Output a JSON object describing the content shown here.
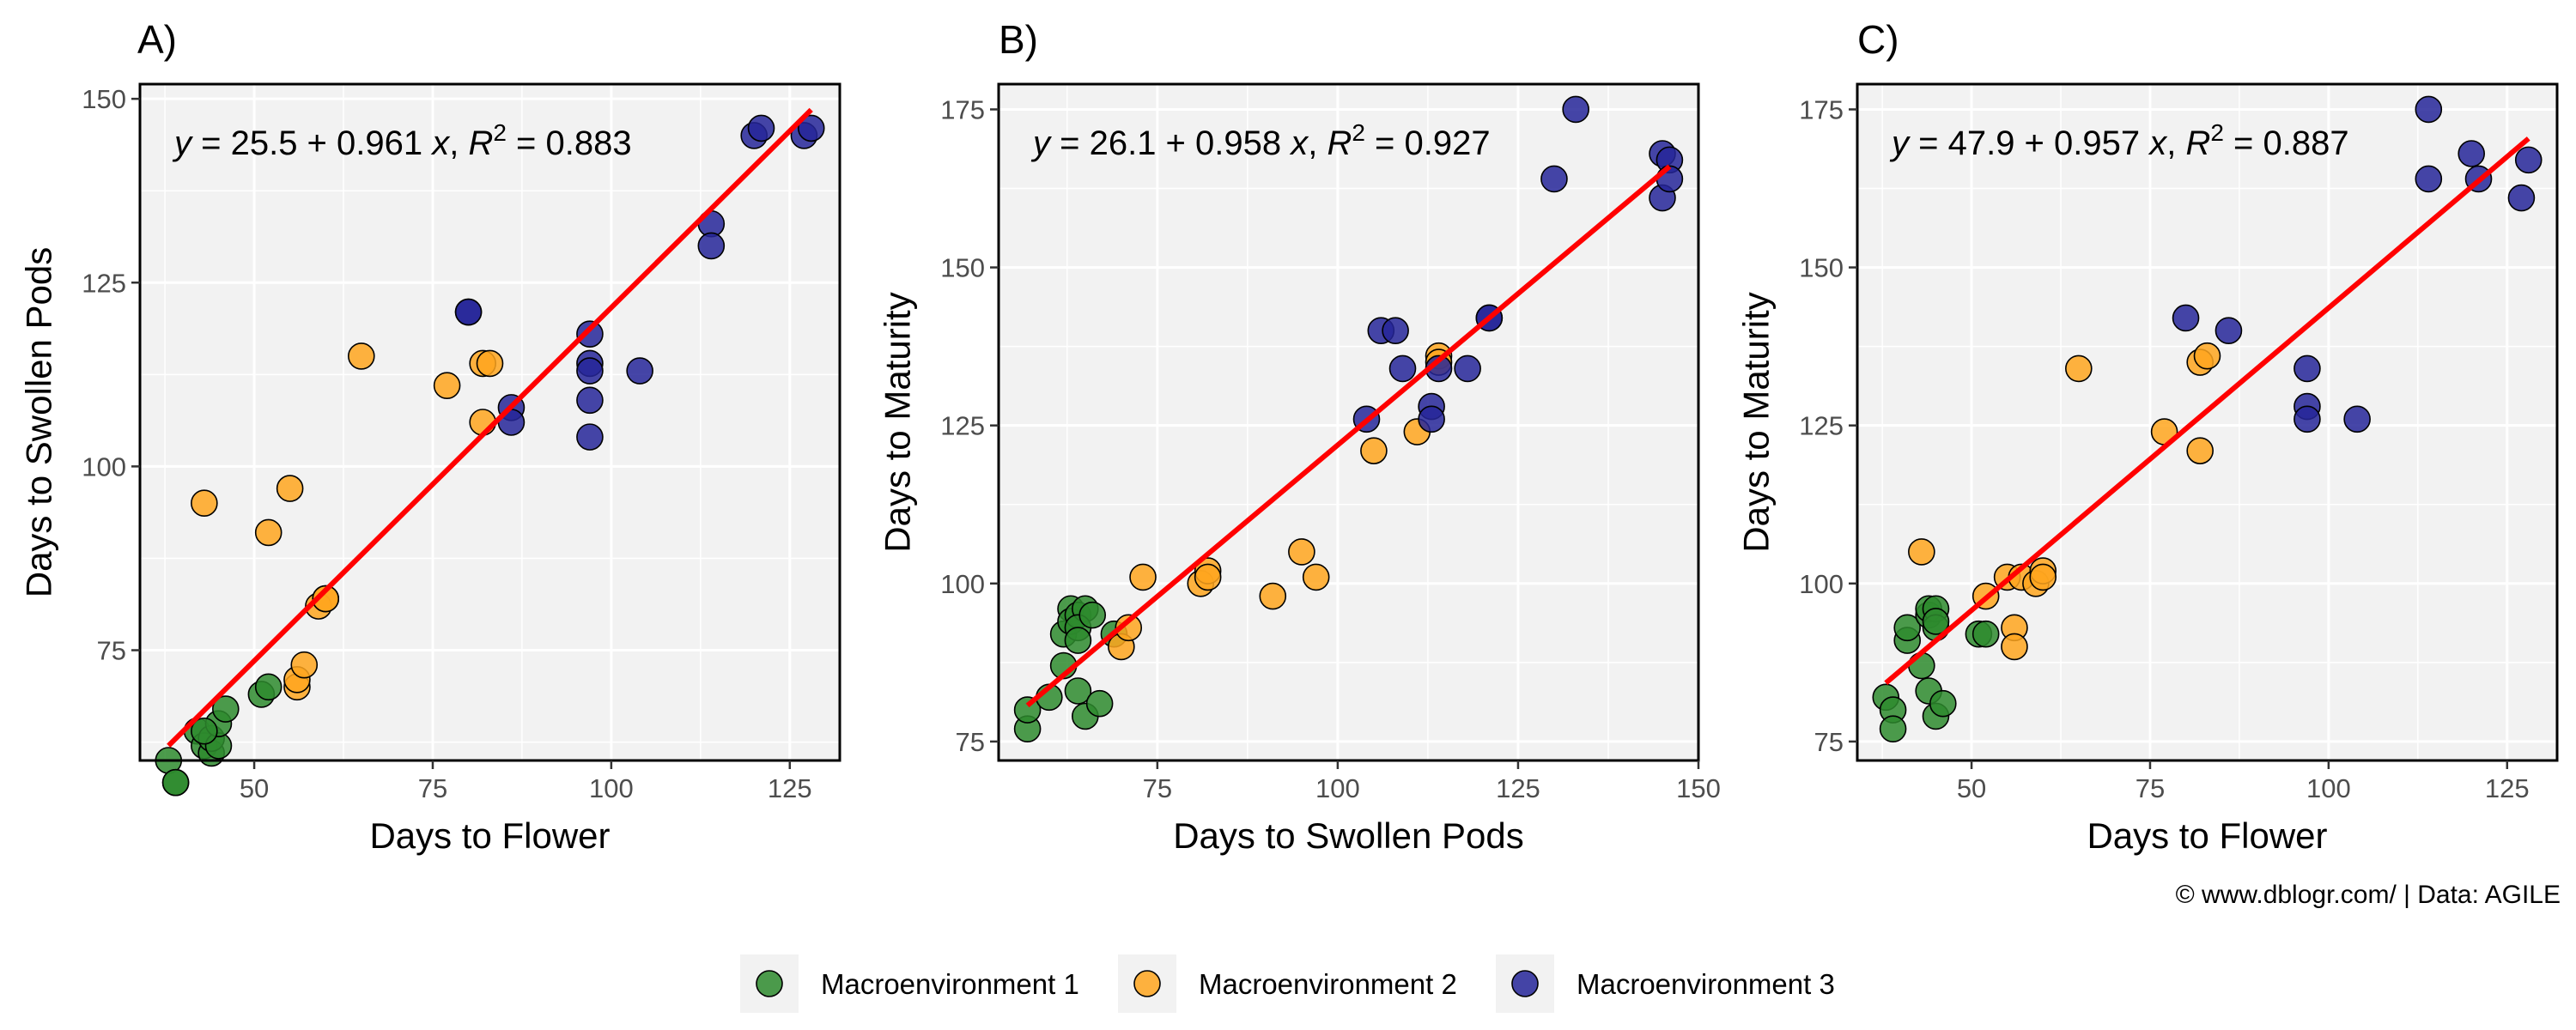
{
  "colors": {
    "panel_bg": "#f2f2f2",
    "grid": "#ffffff",
    "border": "#000000",
    "fit_line": "#ff0000",
    "env1": "#2e8b2e",
    "env2": "#ffa61f",
    "env3": "#262699",
    "env3_dark": "#0b0b8a",
    "env2_dark": "#ff9900"
  },
  "legend": [
    {
      "label": "Macroenvironment 1",
      "color_key": "env1"
    },
    {
      "label": "Macroenvironment 2",
      "color_key": "env2"
    },
    {
      "label": "Macroenvironment 3",
      "color_key": "env3"
    }
  ],
  "caption": "© www.dblogr.com/  |  Data: AGILE",
  "chart_data": [
    {
      "type": "scatter",
      "tag": "A)",
      "xlabel": "Days to Flower",
      "ylabel": "Days to Swollen Pods",
      "xlim": [
        34,
        132
      ],
      "ylim": [
        60,
        152
      ],
      "xticks": [
        50,
        75,
        100,
        125
      ],
      "yticks": [
        75,
        100,
        125,
        150
      ],
      "equation": {
        "y": "y",
        "eq": " = 25.5 + 0.961 ",
        "x": "x",
        "sep": ",  ",
        "R": "R",
        "sup": "2",
        "r2": " = 0.883"
      },
      "fit": {
        "intercept": 25.5,
        "slope": 0.961,
        "x_range": [
          38,
          128
        ]
      },
      "series": [
        {
          "group": "env1",
          "points": [
            [
              38,
              60
            ],
            [
              39,
              57
            ],
            [
              39,
              57
            ],
            [
              42,
              64
            ],
            [
              43,
              62
            ],
            [
              44,
              61
            ],
            [
              44,
              63
            ],
            [
              45,
              62
            ],
            [
              45,
              65
            ],
            [
              46,
              67
            ],
            [
              51,
              69
            ],
            [
              52,
              70
            ],
            [
              43,
              64
            ]
          ]
        },
        {
          "group": "env2",
          "points": [
            [
              43,
              95
            ],
            [
              52,
              91
            ],
            [
              55,
              97
            ],
            [
              56,
              70
            ],
            [
              56,
              71
            ],
            [
              57,
              73
            ],
            [
              59,
              81
            ],
            [
              60,
              82
            ],
            [
              65,
              115
            ],
            [
              77,
              111
            ],
            [
              82,
              114
            ],
            [
              83,
              114
            ],
            [
              82,
              106
            ],
            [
              60,
              82
            ]
          ]
        },
        {
          "group": "env3",
          "points": [
            [
              80,
              121
            ],
            [
              80,
              121
            ],
            [
              86,
              108
            ],
            [
              86,
              106
            ],
            [
              97,
              118
            ],
            [
              97,
              114
            ],
            [
              97,
              113
            ],
            [
              97,
              109
            ],
            [
              97,
              104
            ],
            [
              104,
              113
            ],
            [
              114,
              133
            ],
            [
              114,
              130
            ],
            [
              120,
              145
            ],
            [
              121,
              146
            ],
            [
              127,
              145
            ],
            [
              128,
              146
            ]
          ]
        }
      ]
    },
    {
      "type": "scatter",
      "tag": "B)",
      "xlabel": "Days to Swollen Pods",
      "ylabel": "Days to Maturity",
      "xlim": [
        53,
        150
      ],
      "ylim": [
        72,
        179
      ],
      "xticks": [
        75,
        100,
        125,
        150
      ],
      "yticks": [
        75,
        100,
        125,
        150,
        175
      ],
      "equation": {
        "y": "y",
        "eq": " = 26.1 + 0.958 ",
        "x": "x",
        "sep": ",  ",
        "R": "R",
        "sup": "2",
        "r2": " = 0.927"
      },
      "fit": {
        "intercept": 26.1,
        "slope": 0.958,
        "x_range": [
          57,
          146
        ]
      },
      "series": [
        {
          "group": "env1",
          "points": [
            [
              57,
              77
            ],
            [
              57,
              80
            ],
            [
              60,
              82
            ],
            [
              62,
              87
            ],
            [
              62,
              92
            ],
            [
              63,
              96
            ],
            [
              63,
              94
            ],
            [
              64,
              95
            ],
            [
              65,
              96
            ],
            [
              64,
              93
            ],
            [
              64,
              91
            ],
            [
              65,
              79
            ],
            [
              64,
              83
            ],
            [
              66,
              95
            ],
            [
              67,
              81
            ],
            [
              69,
              92
            ]
          ]
        },
        {
          "group": "env2",
          "points": [
            [
              70,
              90
            ],
            [
              71,
              93
            ],
            [
              73,
              101
            ],
            [
              81,
              100
            ],
            [
              82,
              102
            ],
            [
              82,
              101
            ],
            [
              91,
              98
            ],
            [
              95,
              105
            ],
            [
              97,
              101
            ],
            [
              105,
              121
            ],
            [
              111,
              124
            ],
            [
              114,
              136
            ],
            [
              114,
              135
            ]
          ]
        },
        {
          "group": "env3",
          "points": [
            [
              104,
              126
            ],
            [
              106,
              140
            ],
            [
              108,
              140
            ],
            [
              109,
              134
            ],
            [
              113,
              128
            ],
            [
              113,
              126
            ],
            [
              114,
              134
            ],
            [
              118,
              134
            ],
            [
              121,
              142
            ],
            [
              121,
              142
            ],
            [
              130,
              164
            ],
            [
              133,
              175
            ],
            [
              145,
              168
            ],
            [
              145,
              161
            ],
            [
              146,
              167
            ],
            [
              146,
              164
            ]
          ]
        }
      ]
    },
    {
      "type": "scatter",
      "tag": "C)",
      "xlabel": "Days to Flower",
      "ylabel": "Days to Maturity",
      "xlim": [
        34,
        132
      ],
      "ylim": [
        72,
        179
      ],
      "xticks": [
        50,
        75,
        100,
        125
      ],
      "yticks": [
        75,
        100,
        125,
        150,
        175
      ],
      "equation": {
        "y": "y",
        "eq": " = 47.9 + 0.957 ",
        "x": "x",
        "sep": ",  ",
        "R": "R",
        "sup": "2",
        "r2": " = 0.887"
      },
      "fit": {
        "intercept": 47.9,
        "slope": 0.957,
        "x_range": [
          38,
          128
        ]
      },
      "series": [
        {
          "group": "env1",
          "points": [
            [
              38,
              82
            ],
            [
              39,
              80
            ],
            [
              39,
              77
            ],
            [
              41,
              91
            ],
            [
              41,
              93
            ],
            [
              43,
              87
            ],
            [
              44,
              83
            ],
            [
              44,
              95
            ],
            [
              44,
              96
            ],
            [
              45,
              96
            ],
            [
              45,
              93
            ],
            [
              45,
              79
            ],
            [
              46,
              81
            ],
            [
              51,
              92
            ],
            [
              52,
              92
            ],
            [
              45,
              94
            ]
          ]
        },
        {
          "group": "env2",
          "points": [
            [
              43,
              105
            ],
            [
              52,
              98
            ],
            [
              55,
              101
            ],
            [
              56,
              93
            ],
            [
              56,
              90
            ],
            [
              57,
              101
            ],
            [
              59,
              100
            ],
            [
              60,
              102
            ],
            [
              60,
              101
            ],
            [
              65,
              134
            ],
            [
              77,
              124
            ],
            [
              82,
              121
            ],
            [
              82,
              135
            ],
            [
              83,
              136
            ]
          ]
        },
        {
          "group": "env3",
          "points": [
            [
              80,
              142
            ],
            [
              86,
              140
            ],
            [
              97,
              134
            ],
            [
              97,
              128
            ],
            [
              97,
              126
            ],
            [
              104,
              126
            ],
            [
              114,
              175
            ],
            [
              114,
              164
            ],
            [
              120,
              168
            ],
            [
              121,
              164
            ],
            [
              127,
              161
            ],
            [
              128,
              167
            ]
          ]
        }
      ]
    }
  ]
}
